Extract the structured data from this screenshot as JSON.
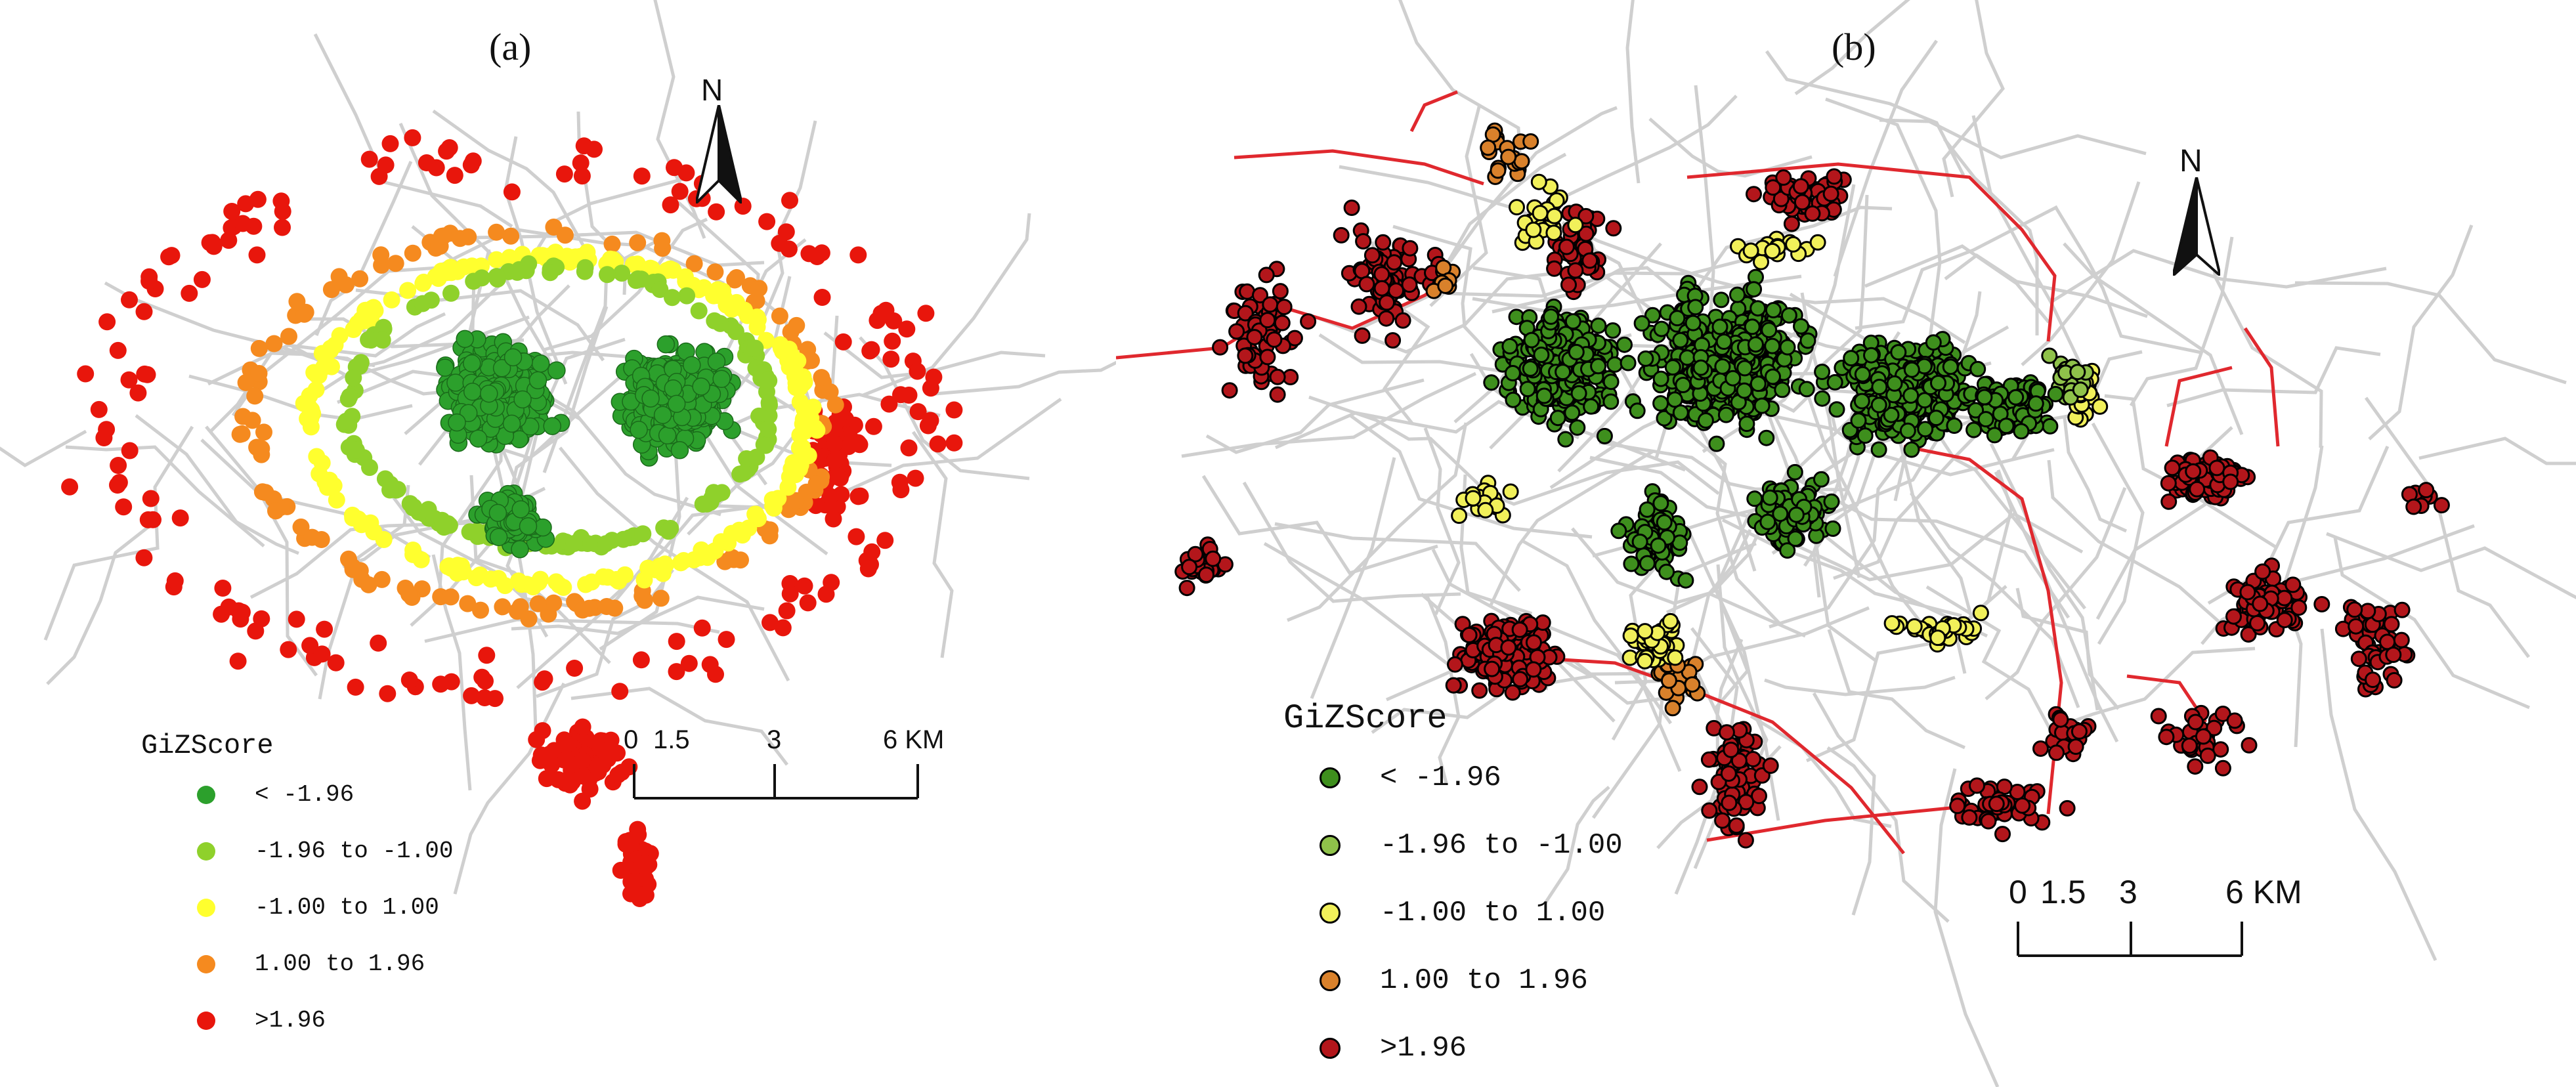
{
  "panels": [
    {
      "label": "(a)",
      "legend_title": "GiZScore",
      "north_label": "N",
      "scale": {
        "ticks": [
          "0",
          "1.5",
          "3",
          "6 KM"
        ]
      },
      "classes": [
        {
          "label": "< -1.96",
          "color": "#2ca02c"
        },
        {
          "label": "-1.96 to -1.00",
          "color": "#8fd12b"
        },
        {
          "label": "-1.00 to 1.00",
          "color": "#ffff2e"
        },
        {
          "label": "1.00 to 1.96",
          "color": "#f58a1f"
        },
        {
          "label": ">1.96",
          "color": "#e8160c"
        }
      ],
      "marker_outline": "none"
    },
    {
      "label": "(b)",
      "legend_title": "GiZScore",
      "north_label": "N",
      "scale": {
        "ticks": [
          "0",
          "1.5",
          "3",
          "6 KM"
        ]
      },
      "classes": [
        {
          "label": "< -1.96",
          "color": "#3e8f1d"
        },
        {
          "label": "-1.96 to -1.00",
          "color": "#8fc24a"
        },
        {
          "label": "-1.00 to 1.00",
          "color": "#f1f05a"
        },
        {
          "label": "1.00 to 1.96",
          "color": "#d9812b"
        },
        {
          "label": ">1.96",
          "color": "#b3161b"
        }
      ],
      "marker_outline": "#000000",
      "rail_color": "#e0282e"
    }
  ],
  "road_color": "#cfcfcf"
}
